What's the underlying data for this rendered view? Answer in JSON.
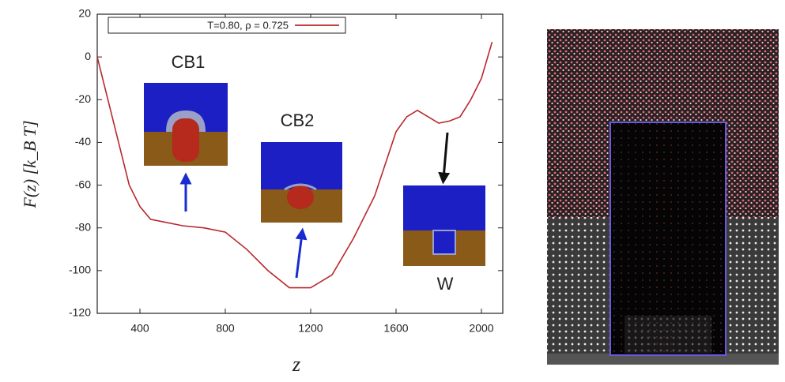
{
  "chart_data": {
    "type": "line",
    "y_label": "F(z)   [k_B T]",
    "x_label": "z",
    "x": [
      200,
      250,
      300,
      350,
      400,
      450,
      500,
      600,
      700,
      800,
      900,
      1000,
      1100,
      1200,
      1300,
      1400,
      1500,
      1600,
      1650,
      1700,
      1750,
      1800,
      1850,
      1900,
      1950,
      2000,
      2050
    ],
    "series": [
      {
        "name": "T=0.80, ρ = 0.725",
        "color": "#b8282c",
        "values": [
          0,
          -20,
          -40,
          -60,
          -70,
          -76,
          -77,
          -79,
          -80,
          -82,
          -90,
          -100,
          -108,
          -108,
          -102,
          -85,
          -65,
          -35,
          -28,
          -25,
          -28,
          -31,
          -30,
          -28,
          -20,
          -10,
          7
        ]
      }
    ],
    "xlim": [
      200,
      2100
    ],
    "xticks": [
      400,
      800,
      1200,
      1600,
      2000
    ],
    "ylim": [
      -120,
      20
    ],
    "yticks": [
      -120,
      -100,
      -80,
      -60,
      -40,
      -20,
      0,
      20
    ],
    "annotations": [
      "CB1",
      "CB2",
      "W"
    ],
    "legend": "top-left"
  }
}
